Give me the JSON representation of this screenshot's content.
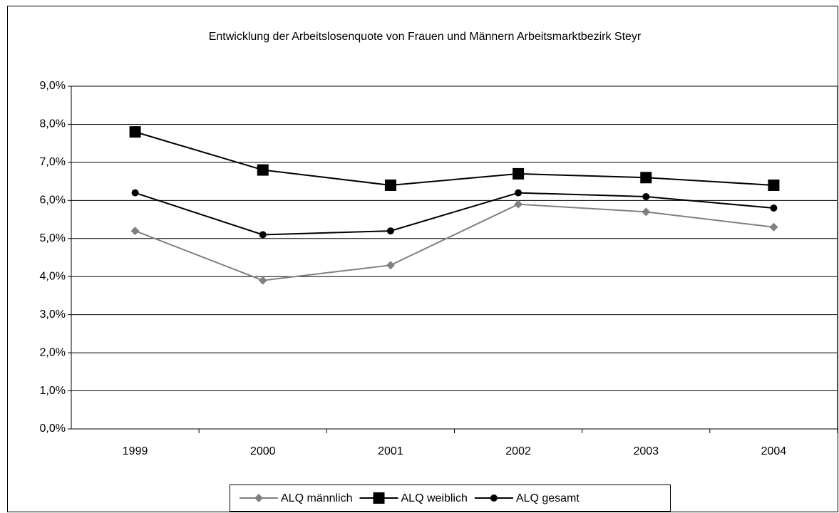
{
  "chart_data": {
    "type": "line",
    "title": "Entwicklung der Arbeitslosenquote von Frauen und Männern Arbeitsmarktbezirk Steyr",
    "categories": [
      "1999",
      "2000",
      "2001",
      "2002",
      "2003",
      "2004"
    ],
    "series": [
      {
        "name": "ALQ männlich",
        "color": "#808080",
        "marker": "diamond",
        "values": [
          5.2,
          3.9,
          4.3,
          5.9,
          5.7,
          5.3
        ]
      },
      {
        "name": "ALQ weiblich",
        "color": "#000000",
        "marker": "square",
        "values": [
          7.8,
          6.8,
          6.4,
          6.7,
          6.6,
          6.4
        ]
      },
      {
        "name": "ALQ gesamt",
        "color": "#000000",
        "marker": "circle",
        "values": [
          6.2,
          5.1,
          5.2,
          6.2,
          6.1,
          5.8
        ]
      }
    ],
    "ylim": [
      0,
      9
    ],
    "yticks": [
      {
        "value": 0,
        "label": "0,0%"
      },
      {
        "value": 1,
        "label": "1,0%"
      },
      {
        "value": 2,
        "label": "2,0%"
      },
      {
        "value": 3,
        "label": "3,0%"
      },
      {
        "value": 4,
        "label": "4,0%"
      },
      {
        "value": 5,
        "label": "5,0%"
      },
      {
        "value": 6,
        "label": "6,0%"
      },
      {
        "value": 7,
        "label": "7,0%"
      },
      {
        "value": 8,
        "label": "8,0%"
      },
      {
        "value": 9,
        "label": "9,0%"
      }
    ],
    "grid": true,
    "legend": "bottom"
  }
}
